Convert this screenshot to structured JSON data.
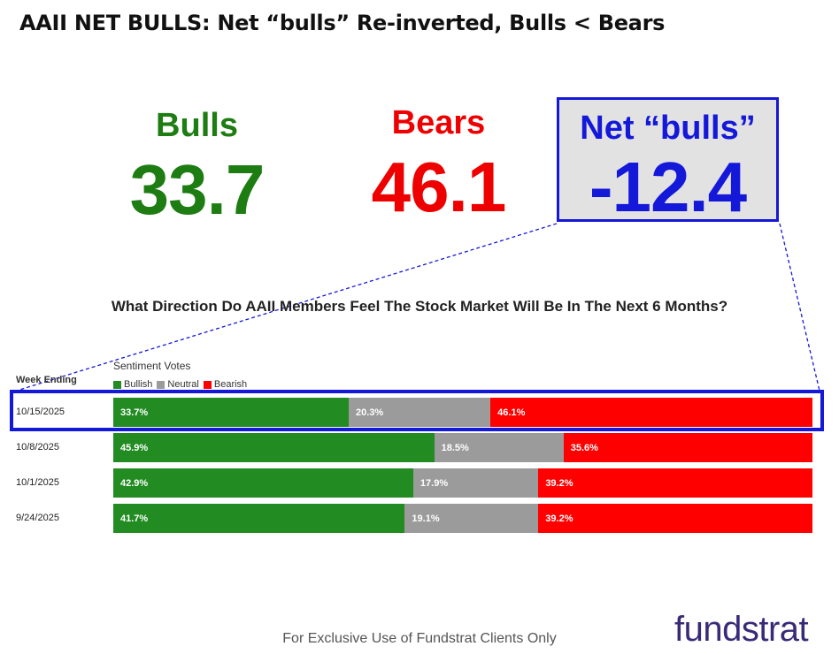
{
  "title": "AAII NET BULLS: Net “bulls” Re-inverted, Bulls < Bears",
  "stats": {
    "bulls_label": "Bulls",
    "bulls_value": "33.7",
    "bears_label": "Bears",
    "bears_value": "46.1",
    "net_label": "Net “bulls”",
    "net_value": "-12.4"
  },
  "colors": {
    "bullish": "#228b22",
    "neutral": "#9b9b9b",
    "bearish": "#ff0000",
    "highlight": "#1418d9"
  },
  "chart_data": {
    "type": "bar",
    "stacked": true,
    "orientation": "horizontal",
    "title": "What Direction Do AAII Members Feel The Stock Market Will Be In The Next 6 Months?",
    "category_header": "Week Ending",
    "legend_title": "Sentiment Votes",
    "categories": [
      "10/15/2025",
      "10/8/2025",
      "10/1/2025",
      "9/24/2025"
    ],
    "series": [
      {
        "name": "Bullish",
        "values": [
          33.7,
          45.9,
          42.9,
          41.7
        ],
        "labels": [
          "33.7%",
          "45.9%",
          "42.9%",
          "41.7%"
        ]
      },
      {
        "name": "Neutral",
        "values": [
          20.3,
          18.5,
          17.9,
          19.1
        ],
        "labels": [
          "20.3%",
          "18.5%",
          "17.9%",
          "19.1%"
        ]
      },
      {
        "name": "Bearish",
        "values": [
          46.1,
          35.6,
          39.2,
          39.2
        ],
        "labels": [
          "46.1%",
          "35.6%",
          "39.2%",
          "39.2%"
        ]
      }
    ],
    "highlighted_category": "10/15/2025"
  },
  "footer": "For Exclusive Use of Fundstrat Clients Only",
  "brand": "fundstrat"
}
